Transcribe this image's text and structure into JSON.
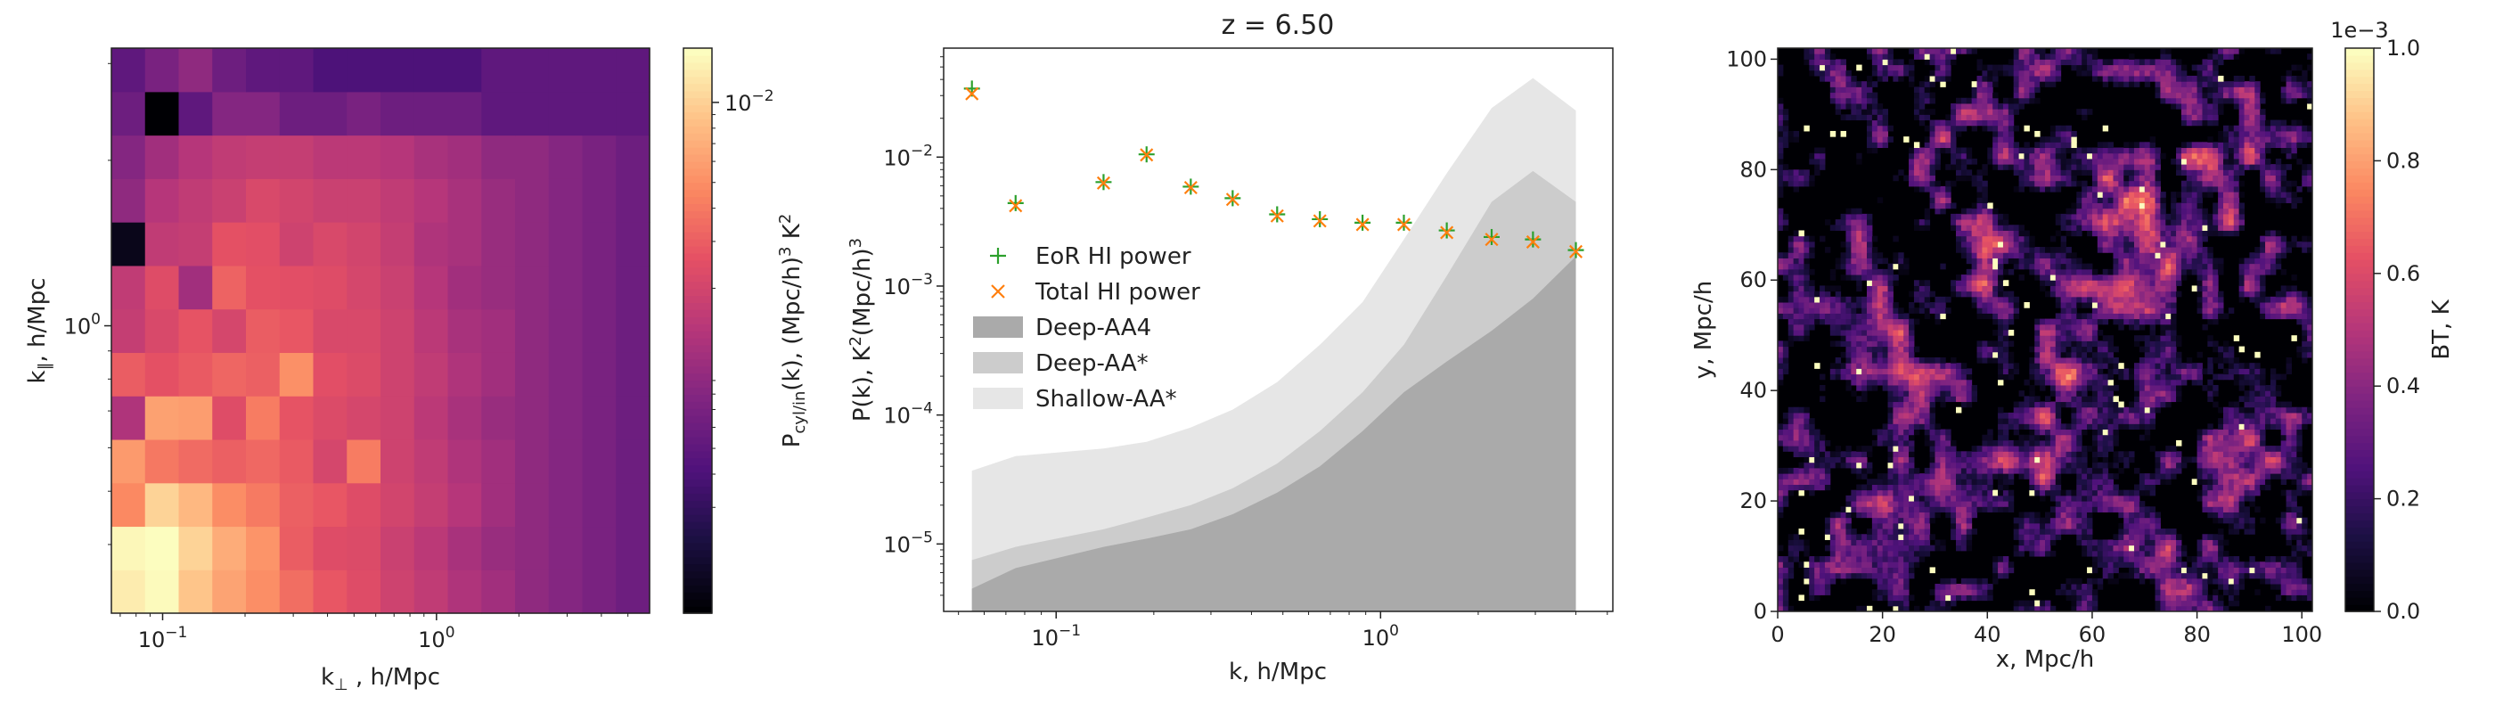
{
  "chart_data": [
    {
      "type": "heatmap",
      "xlabel": "k⊥ , h/Mpc",
      "ylabel": "k∥, h/Mpc",
      "x_scale": "log",
      "y_scale": "log",
      "xlim": [
        0.065,
        6.0
      ],
      "ylim": [
        0.3,
        3.2
      ],
      "x_ticks": [
        {
          "value": 0.1,
          "base": "10",
          "exp": "−1"
        },
        {
          "value": 1,
          "base": "10",
          "exp": "0"
        }
      ],
      "y_ticks": [
        {
          "value": 1,
          "base": "10",
          "exp": "0"
        }
      ],
      "colormap": "magma",
      "colorbar": {
        "label": "P",
        "label_sub": "cyl/in",
        "label_rest": "(k), (Mpc/h)",
        "label_sup": "3",
        "label_tail": " K",
        "label_sup2": "2",
        "ticks": [
          {
            "value": 0.01,
            "base": "10",
            "exp": "−2"
          }
        ],
        "vmin": 0.00012,
        "vmax": 0.016
      },
      "n_x": 16,
      "n_y": 13,
      "cell_values": [
        [
          0.0135,
          0.0155,
          0.0092,
          0.0064,
          0.0051,
          0.0036,
          0.0028,
          0.0024,
          0.0019,
          0.0016,
          0.0013,
          0.0011,
          0.0009,
          0.0008,
          0.0007,
          0.0006
        ],
        [
          0.015,
          0.016,
          0.0105,
          0.007,
          0.0054,
          0.003,
          0.0024,
          0.0023,
          0.0018,
          0.0015,
          0.0012,
          0.001,
          0.0009,
          0.0008,
          0.0007,
          0.0006
        ],
        [
          0.0048,
          0.0105,
          0.008,
          0.005,
          0.0041,
          0.0031,
          0.0028,
          0.0024,
          0.002,
          0.0017,
          0.0014,
          0.0011,
          0.0009,
          0.0008,
          0.0007,
          0.0006
        ],
        [
          0.0058,
          0.004,
          0.0035,
          0.0031,
          0.0034,
          0.0029,
          0.0021,
          0.0042,
          0.0019,
          0.0016,
          0.0013,
          0.0011,
          0.0009,
          0.0008,
          0.0007,
          0.0006
        ],
        [
          0.0013,
          0.0062,
          0.006,
          0.0024,
          0.0042,
          0.0027,
          0.0023,
          0.0021,
          0.0019,
          0.0015,
          0.0012,
          0.001,
          0.0009,
          0.0008,
          0.0007,
          0.0006
        ],
        [
          0.003,
          0.0026,
          0.0029,
          0.0033,
          0.0031,
          0.0052,
          0.0025,
          0.0023,
          0.0019,
          0.0016,
          0.0013,
          0.0011,
          0.0009,
          0.0008,
          0.0007,
          0.0006
        ],
        [
          0.0017,
          0.0022,
          0.0027,
          0.0021,
          0.003,
          0.0028,
          0.0022,
          0.0022,
          0.0019,
          0.0015,
          0.0012,
          0.0011,
          0.0009,
          0.0008,
          0.0007,
          0.0006
        ],
        [
          0.0016,
          0.0024,
          0.0011,
          0.0032,
          0.0026,
          0.0025,
          0.0024,
          0.0021,
          0.0018,
          0.0014,
          0.0011,
          0.001,
          0.0009,
          0.0008,
          0.0007,
          0.0006
        ],
        [
          0.00015,
          0.0016,
          0.0017,
          0.0026,
          0.0025,
          0.0019,
          0.0022,
          0.002,
          0.0017,
          0.0013,
          0.0012,
          0.001,
          0.0009,
          0.0008,
          0.0007,
          0.0006
        ],
        [
          0.0009,
          0.0014,
          0.0016,
          0.0018,
          0.0022,
          0.002,
          0.0018,
          0.0018,
          0.0016,
          0.0014,
          0.0012,
          0.001,
          0.0009,
          0.0008,
          0.0007,
          0.0006
        ],
        [
          0.0008,
          0.0011,
          0.0014,
          0.0016,
          0.0017,
          0.0017,
          0.0015,
          0.0015,
          0.0014,
          0.0012,
          0.0011,
          0.0009,
          0.0009,
          0.0008,
          0.0007,
          0.0006
        ],
        [
          0.0006,
          0.00012,
          0.0005,
          0.0008,
          0.0008,
          0.0006,
          0.0006,
          0.0007,
          0.0006,
          0.0006,
          0.0006,
          0.0005,
          0.0005,
          0.0005,
          0.0005,
          0.0005
        ],
        [
          0.0005,
          0.0007,
          0.0009,
          0.0006,
          0.0005,
          0.0005,
          0.0004,
          0.0004,
          0.0004,
          0.0004,
          0.0004,
          0.0005,
          0.0005,
          0.0005,
          0.0005,
          0.0005
        ]
      ]
    },
    {
      "type": "line",
      "title": "z = 6.50",
      "xlabel": "k, h/Mpc",
      "ylabel": "P(k), K",
      "ylabel_sup": "2",
      "ylabel_rest": "(Mpc/h)",
      "ylabel_sup2": "3",
      "x_scale": "log",
      "y_scale": "log",
      "xlim": [
        0.045,
        5.2
      ],
      "ylim": [
        3e-06,
        0.07
      ],
      "x_ticks": [
        {
          "value": 0.1,
          "base": "10",
          "exp": "−1"
        },
        {
          "value": 1,
          "base": "10",
          "exp": "0"
        }
      ],
      "y_ticks": [
        {
          "value": 1e-05,
          "base": "10",
          "exp": "−5"
        },
        {
          "value": 0.0001,
          "base": "10",
          "exp": "−4"
        },
        {
          "value": 0.001,
          "base": "10",
          "exp": "−3"
        },
        {
          "value": 0.01,
          "base": "10",
          "exp": "−2"
        }
      ],
      "x": [
        0.055,
        0.075,
        0.14,
        0.19,
        0.26,
        0.35,
        0.48,
        0.65,
        0.88,
        1.18,
        1.6,
        2.2,
        2.95,
        4.0
      ],
      "series": [
        {
          "name": "EoR HI power",
          "marker": "+",
          "color": "#2ca02c",
          "values": [
            0.034,
            0.0044,
            0.0064,
            0.0105,
            0.0059,
            0.0048,
            0.0036,
            0.0033,
            0.0031,
            0.0031,
            0.0027,
            0.0024,
            0.0023,
            0.0019
          ]
        },
        {
          "name": "Total HI power",
          "marker": "x",
          "color": "#ff7f0e",
          "values": [
            0.031,
            0.0042,
            0.0063,
            0.0104,
            0.0058,
            0.0047,
            0.0035,
            0.0032,
            0.003,
            0.003,
            0.0026,
            0.0023,
            0.0022,
            0.00185
          ]
        }
      ],
      "bands": [
        {
          "name": "Deep-AA4",
          "color": "#aaaaaa",
          "x": [
            0.055,
            0.075,
            0.14,
            0.19,
            0.26,
            0.35,
            0.48,
            0.65,
            0.88,
            1.18,
            1.6,
            2.2,
            2.95,
            4.0
          ],
          "values": [
            4.5e-06,
            6.5e-06,
            9.5e-06,
            1.1e-05,
            1.3e-05,
            1.7e-05,
            2.5e-05,
            4e-05,
            7.5e-05,
            0.00015,
            0.00026,
            0.00045,
            0.0008,
            0.0017
          ]
        },
        {
          "name": "Deep-AA*",
          "color": "#cccccc",
          "x": [
            0.055,
            0.075,
            0.14,
            0.19,
            0.26,
            0.35,
            0.48,
            0.65,
            0.88,
            1.18,
            1.6,
            2.2,
            2.95,
            4.0
          ],
          "values": [
            7.5e-06,
            9.5e-06,
            1.3e-05,
            1.6e-05,
            2e-05,
            2.7e-05,
            4.2e-05,
            7.5e-05,
            0.00015,
            0.00035,
            0.0012,
            0.0045,
            0.0078,
            0.0045
          ]
        },
        {
          "name": "Shallow-AA*",
          "color": "#e6e6e6",
          "x": [
            0.055,
            0.075,
            0.14,
            0.19,
            0.26,
            0.35,
            0.48,
            0.65,
            0.88,
            1.18,
            1.6,
            2.2,
            2.95,
            4.0
          ],
          "values": [
            3.7e-05,
            4.8e-05,
            5.5e-05,
            6.2e-05,
            8e-05,
            0.00011,
            0.00018,
            0.00035,
            0.00075,
            0.0023,
            0.0075,
            0.024,
            0.041,
            0.023
          ]
        }
      ],
      "legend": {
        "position": "center-left",
        "order": [
          "EoR HI power",
          "Total HI power",
          "Deep-AA4",
          "Deep-AA*",
          "Shallow-AA*"
        ]
      }
    },
    {
      "type": "heatmap",
      "xlabel": "x, Mpc/h",
      "ylabel": "y, Mpc/h",
      "xlim": [
        0,
        102
      ],
      "ylim": [
        0,
        102
      ],
      "x_ticks": [
        0,
        20,
        40,
        60,
        80,
        100
      ],
      "y_ticks": [
        0,
        20,
        40,
        60,
        80,
        100
      ],
      "colormap": "magma",
      "field": {
        "description_free": true,
        "clusters": [
          {
            "x": 24,
            "y": 18,
            "a": 1.0,
            "s": 3
          },
          {
            "x": 48,
            "y": 27,
            "a": 1.0,
            "s": 3
          },
          {
            "x": 40,
            "y": 63,
            "a": 0.9,
            "s": 2.5
          },
          {
            "x": 22,
            "y": 46,
            "a": 0.6,
            "s": 4
          },
          {
            "x": 55,
            "y": 41,
            "a": 0.6,
            "s": 4
          },
          {
            "x": 65,
            "y": 75,
            "a": 0.55,
            "s": 4
          },
          {
            "x": 80,
            "y": 68,
            "a": 0.6,
            "s": 4
          },
          {
            "x": 85,
            "y": 85,
            "a": 0.55,
            "s": 4
          },
          {
            "x": 30,
            "y": 85,
            "a": 0.45,
            "s": 4
          },
          {
            "x": 12,
            "y": 58,
            "a": 0.45,
            "s": 4
          },
          {
            "x": 72,
            "y": 10,
            "a": 0.55,
            "s": 3
          },
          {
            "x": 90,
            "y": 30,
            "a": 0.5,
            "s": 4
          },
          {
            "x": 62,
            "y": 55,
            "a": 0.5,
            "s": 4
          },
          {
            "x": 95,
            "y": 55,
            "a": 0.45,
            "s": 3
          },
          {
            "x": 5,
            "y": 25,
            "a": 0.4,
            "s": 4
          },
          {
            "x": 50,
            "y": 90,
            "a": 0.45,
            "s": 4
          }
        ]
      },
      "colorbar": {
        "label": "BT, K",
        "offset_text": "1e−3",
        "ticks": [
          0.0,
          0.2,
          0.4,
          0.6,
          0.8,
          1.0
        ],
        "tick_labels": [
          "0.0",
          "0.2",
          "0.4",
          "0.6",
          "0.8",
          "1.0"
        ],
        "vmin": 0.0,
        "vmax": 1.0
      }
    }
  ]
}
